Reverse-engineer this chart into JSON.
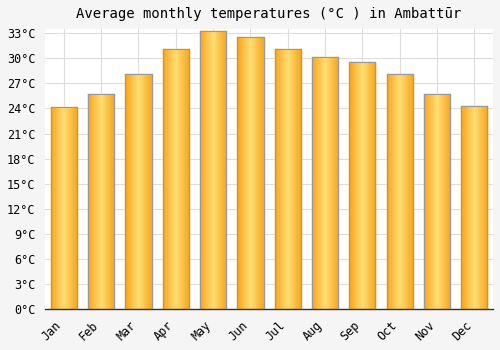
{
  "title": "Average monthly temperatures (°C ) in Ambattūr",
  "months": [
    "Jan",
    "Feb",
    "Mar",
    "Apr",
    "May",
    "Jun",
    "Jul",
    "Aug",
    "Sep",
    "Oct",
    "Nov",
    "Dec"
  ],
  "values": [
    24.2,
    25.7,
    28.1,
    31.1,
    33.3,
    32.6,
    31.1,
    30.1,
    29.6,
    28.1,
    25.7,
    24.3
  ],
  "bar_color_center": "#FFD966",
  "bar_color_edge": "#F5A623",
  "bar_border_color": "#999999",
  "background_color": "#F5F5F5",
  "plot_bg_color": "#FFFFFF",
  "grid_color": "#DDDDDD",
  "ylim": [
    0,
    33
  ],
  "ytick_step": 3,
  "title_fontsize": 10,
  "tick_fontsize": 8.5,
  "font_family": "monospace"
}
